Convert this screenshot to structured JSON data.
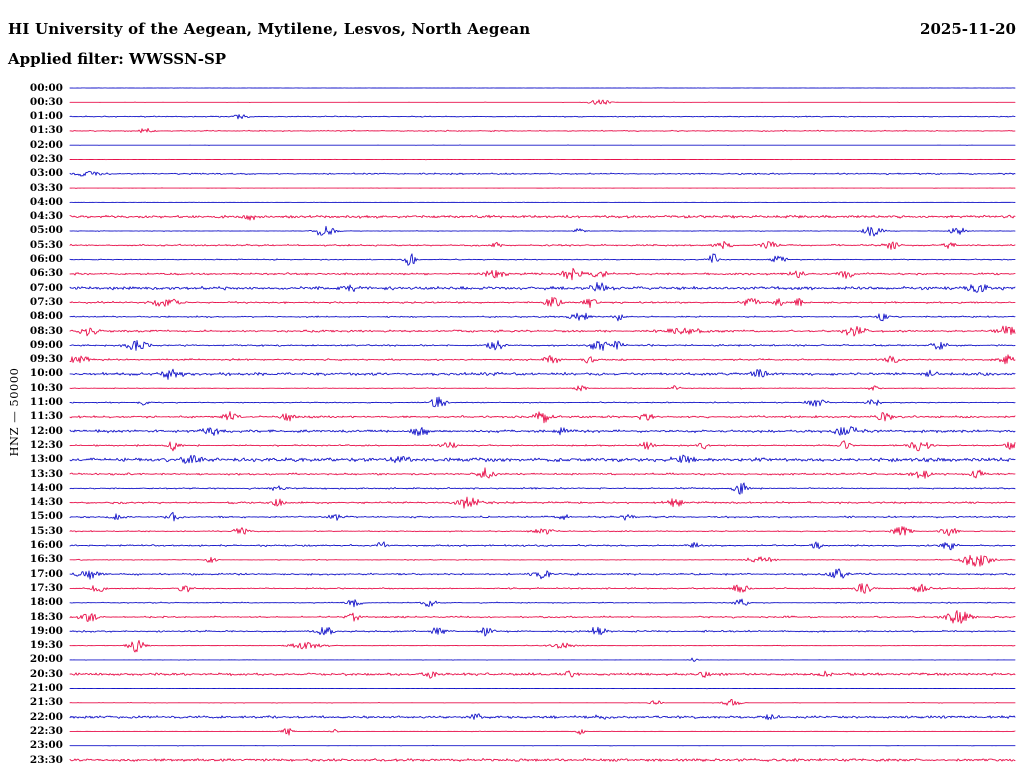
{
  "header": {
    "title": "HI University of the Aegean, Mytilene, Lesvos, North Aegean",
    "date": "2025-11-20",
    "filter": "Applied filter: WWSSN-SP"
  },
  "axis": {
    "channel_label": "HNZ — 50000",
    "first_row_time": "00:00",
    "last_row_time": "23:30",
    "row_interval_minutes": 30
  },
  "colors": {
    "trace_blue": "#1414c8",
    "trace_red": "#e8114b",
    "text": "#000000",
    "background": "#ffffff"
  },
  "chart_data": {
    "type": "line",
    "subtype": "helicorder-seismogram",
    "title": "HI University of the Aegean, Mytilene, Lesvos, North Aegean",
    "date": "2025-11-20",
    "filter": "WWSSN-SP",
    "channel": "HNZ",
    "scale": 50000,
    "rows_per_day": 48,
    "legend_position": "none",
    "grid": false,
    "note": "48 half-hour traces; colors alternate blue (:00) / red (:30); noise=baseline spike amplitude px, density=spike probability per px, bursts=[position-fraction, amplitude, half-width-px]",
    "rows": [
      {
        "time": "00:00",
        "color": "blue",
        "noise": 0.22,
        "density": 0.03,
        "bursts": []
      },
      {
        "time": "00:30",
        "color": "red",
        "noise": 0.22,
        "density": 0.03,
        "bursts": [
          [
            0.56,
            1.4,
            7
          ]
        ]
      },
      {
        "time": "01:00",
        "color": "blue",
        "noise": 0.5,
        "density": 0.38,
        "bursts": [
          [
            0.18,
            1.0,
            6
          ]
        ]
      },
      {
        "time": "01:30",
        "color": "red",
        "noise": 0.52,
        "density": 0.42,
        "bursts": [
          [
            0.08,
            1.3,
            5
          ]
        ]
      },
      {
        "time": "02:00",
        "color": "blue",
        "noise": 0.22,
        "density": 0.03,
        "bursts": []
      },
      {
        "time": "02:30",
        "color": "red",
        "noise": 0.22,
        "density": 0.03,
        "bursts": []
      },
      {
        "time": "03:00",
        "color": "blue",
        "noise": 0.65,
        "density": 0.55,
        "bursts": [
          [
            0.02,
            1.2,
            10
          ]
        ]
      },
      {
        "time": "03:30",
        "color": "red",
        "noise": 0.26,
        "density": 0.07,
        "bursts": []
      },
      {
        "time": "04:00",
        "color": "blue",
        "noise": 0.26,
        "density": 0.05,
        "bursts": []
      },
      {
        "time": "04:30",
        "color": "red",
        "noise": 1.05,
        "density": 0.85,
        "bursts": [
          [
            0.19,
            1.6,
            6
          ]
        ]
      },
      {
        "time": "05:00",
        "color": "blue",
        "noise": 0.38,
        "density": 0.18,
        "bursts": [
          [
            0.27,
            2.4,
            7
          ],
          [
            0.54,
            1.3,
            4
          ],
          [
            0.85,
            2.0,
            7
          ],
          [
            0.94,
            1.6,
            6
          ]
        ]
      },
      {
        "time": "05:30",
        "color": "red",
        "noise": 0.75,
        "density": 0.5,
        "bursts": [
          [
            0.45,
            1.4,
            5
          ],
          [
            0.69,
            1.8,
            6
          ],
          [
            0.74,
            1.6,
            6
          ],
          [
            0.87,
            1.6,
            5
          ],
          [
            0.93,
            1.4,
            4
          ]
        ]
      },
      {
        "time": "06:00",
        "color": "blue",
        "noise": 0.55,
        "density": 0.35,
        "bursts": [
          [
            0.36,
            2.6,
            4
          ],
          [
            0.68,
            2.6,
            4
          ],
          [
            0.75,
            1.9,
            5
          ]
        ]
      },
      {
        "time": "06:30",
        "color": "red",
        "noise": 0.85,
        "density": 0.6,
        "bursts": [
          [
            0.45,
            2.0,
            8
          ],
          [
            0.53,
            2.3,
            8
          ],
          [
            0.56,
            1.8,
            5
          ],
          [
            0.77,
            1.7,
            5
          ],
          [
            0.82,
            2.0,
            6
          ]
        ]
      },
      {
        "time": "07:00",
        "color": "blue",
        "noise": 1.25,
        "density": 0.8,
        "bursts": [
          [
            0.3,
            1.6,
            6
          ],
          [
            0.56,
            2.2,
            8
          ],
          [
            0.96,
            2.2,
            8
          ]
        ]
      },
      {
        "time": "07:30",
        "color": "red",
        "noise": 0.75,
        "density": 0.55,
        "bursts": [
          [
            0.1,
            1.8,
            10
          ],
          [
            0.51,
            2.0,
            6
          ],
          [
            0.55,
            1.8,
            5
          ],
          [
            0.72,
            1.8,
            6
          ],
          [
            0.75,
            1.6,
            4
          ],
          [
            0.77,
            1.6,
            4
          ]
        ]
      },
      {
        "time": "08:00",
        "color": "blue",
        "noise": 0.65,
        "density": 0.45,
        "bursts": [
          [
            0.54,
            2.0,
            7
          ],
          [
            0.58,
            1.6,
            5
          ],
          [
            0.86,
            1.6,
            4
          ]
        ]
      },
      {
        "time": "08:30",
        "color": "red",
        "noise": 0.85,
        "density": 0.6,
        "bursts": [
          [
            0.02,
            2.0,
            6
          ],
          [
            0.65,
            1.3,
            18
          ],
          [
            0.83,
            2.2,
            8
          ],
          [
            0.99,
            2.2,
            8
          ]
        ]
      },
      {
        "time": "09:00",
        "color": "blue",
        "noise": 0.75,
        "density": 0.5,
        "bursts": [
          [
            0.07,
            2.3,
            8
          ],
          [
            0.45,
            2.0,
            6
          ],
          [
            0.56,
            2.3,
            7
          ],
          [
            0.58,
            1.8,
            4
          ],
          [
            0.92,
            1.8,
            5
          ]
        ]
      },
      {
        "time": "09:30",
        "color": "red",
        "noise": 0.75,
        "density": 0.5,
        "bursts": [
          [
            0.01,
            1.8,
            8
          ],
          [
            0.51,
            1.8,
            6
          ],
          [
            0.55,
            1.6,
            5
          ],
          [
            0.87,
            1.6,
            5
          ],
          [
            0.99,
            1.8,
            6
          ]
        ]
      },
      {
        "time": "10:00",
        "color": "blue",
        "noise": 1.15,
        "density": 0.75,
        "bursts": [
          [
            0.11,
            2.8,
            7
          ],
          [
            0.73,
            1.8,
            6
          ],
          [
            0.91,
            1.6,
            5
          ]
        ]
      },
      {
        "time": "10:30",
        "color": "red",
        "noise": 0.45,
        "density": 0.28,
        "bursts": [
          [
            0.54,
            1.3,
            4
          ],
          [
            0.64,
            1.1,
            4
          ],
          [
            0.85,
            1.1,
            4
          ]
        ]
      },
      {
        "time": "11:00",
        "color": "blue",
        "noise": 0.55,
        "density": 0.35,
        "bursts": [
          [
            0.08,
            1.3,
            4
          ],
          [
            0.39,
            2.6,
            5
          ],
          [
            0.79,
            1.8,
            6
          ],
          [
            0.85,
            1.6,
            5
          ]
        ]
      },
      {
        "time": "11:30",
        "color": "red",
        "noise": 0.85,
        "density": 0.6,
        "bursts": [
          [
            0.17,
            1.8,
            6
          ],
          [
            0.23,
            1.6,
            5
          ],
          [
            0.5,
            2.3,
            7
          ],
          [
            0.61,
            1.8,
            6
          ],
          [
            0.86,
            2.0,
            6
          ]
        ]
      },
      {
        "time": "12:00",
        "color": "blue",
        "noise": 1.15,
        "density": 0.7,
        "bursts": [
          [
            0.15,
            1.8,
            6
          ],
          [
            0.37,
            2.0,
            7
          ],
          [
            0.52,
            1.6,
            5
          ],
          [
            0.82,
            2.6,
            8
          ]
        ]
      },
      {
        "time": "12:30",
        "color": "red",
        "noise": 0.65,
        "density": 0.45,
        "bursts": [
          [
            0.11,
            2.0,
            5
          ],
          [
            0.4,
            1.6,
            6
          ],
          [
            0.61,
            1.8,
            5
          ],
          [
            0.67,
            1.6,
            4
          ],
          [
            0.82,
            1.6,
            5
          ],
          [
            0.9,
            2.0,
            8
          ],
          [
            1.0,
            2.6,
            6
          ]
        ]
      },
      {
        "time": "13:00",
        "color": "blue",
        "noise": 1.45,
        "density": 0.85,
        "bursts": [
          [
            0.13,
            2.0,
            8
          ],
          [
            0.35,
            1.8,
            8
          ],
          [
            0.65,
            1.8,
            8
          ]
        ]
      },
      {
        "time": "13:30",
        "color": "red",
        "noise": 0.85,
        "density": 0.6,
        "bursts": [
          [
            0.44,
            2.0,
            6
          ],
          [
            0.9,
            2.0,
            7
          ],
          [
            0.96,
            1.8,
            5
          ]
        ]
      },
      {
        "time": "14:00",
        "color": "blue",
        "noise": 0.65,
        "density": 0.45,
        "bursts": [
          [
            0.22,
            1.4,
            5
          ],
          [
            0.71,
            2.3,
            5
          ]
        ]
      },
      {
        "time": "14:30",
        "color": "red",
        "noise": 0.85,
        "density": 0.55,
        "bursts": [
          [
            0.22,
            1.6,
            5
          ],
          [
            0.42,
            2.6,
            8
          ],
          [
            0.64,
            1.8,
            6
          ]
        ]
      },
      {
        "time": "15:00",
        "color": "blue",
        "noise": 0.75,
        "density": 0.5,
        "bursts": [
          [
            0.05,
            1.6,
            5
          ],
          [
            0.11,
            1.6,
            5
          ],
          [
            0.28,
            1.6,
            5
          ],
          [
            0.52,
            1.4,
            5
          ],
          [
            0.59,
            1.4,
            5
          ]
        ]
      },
      {
        "time": "15:30",
        "color": "red",
        "noise": 0.55,
        "density": 0.35,
        "bursts": [
          [
            0.18,
            1.8,
            5
          ],
          [
            0.5,
            1.4,
            8
          ],
          [
            0.88,
            2.0,
            7
          ],
          [
            0.93,
            1.8,
            6
          ]
        ]
      },
      {
        "time": "16:00",
        "color": "blue",
        "noise": 0.75,
        "density": 0.5,
        "bursts": [
          [
            0.33,
            1.6,
            4
          ],
          [
            0.66,
            1.6,
            5
          ],
          [
            0.79,
            1.4,
            4
          ],
          [
            0.93,
            1.6,
            6
          ]
        ]
      },
      {
        "time": "16:30",
        "color": "red",
        "noise": 0.45,
        "density": 0.25,
        "bursts": [
          [
            0.15,
            1.4,
            4
          ],
          [
            0.73,
            1.4,
            10
          ],
          [
            0.96,
            3.0,
            10
          ]
        ]
      },
      {
        "time": "17:00",
        "color": "blue",
        "noise": 0.85,
        "density": 0.55,
        "bursts": [
          [
            0.02,
            2.0,
            8
          ],
          [
            0.5,
            1.8,
            6
          ],
          [
            0.81,
            2.8,
            7
          ]
        ]
      },
      {
        "time": "17:30",
        "color": "red",
        "noise": 0.65,
        "density": 0.45,
        "bursts": [
          [
            0.03,
            1.6,
            5
          ],
          [
            0.12,
            1.6,
            5
          ],
          [
            0.71,
            1.8,
            6
          ],
          [
            0.84,
            2.0,
            7
          ],
          [
            0.9,
            1.8,
            6
          ]
        ]
      },
      {
        "time": "18:00",
        "color": "blue",
        "noise": 0.55,
        "density": 0.35,
        "bursts": [
          [
            0.3,
            1.6,
            6
          ],
          [
            0.38,
            1.6,
            5
          ],
          [
            0.71,
            1.8,
            5
          ]
        ]
      },
      {
        "time": "18:30",
        "color": "red",
        "noise": 0.75,
        "density": 0.5,
        "bursts": [
          [
            0.02,
            2.0,
            6
          ],
          [
            0.3,
            1.6,
            5
          ],
          [
            0.94,
            2.8,
            9
          ]
        ]
      },
      {
        "time": "19:00",
        "color": "blue",
        "noise": 0.75,
        "density": 0.5,
        "bursts": [
          [
            0.27,
            2.0,
            6
          ],
          [
            0.39,
            2.0,
            5
          ],
          [
            0.44,
            1.8,
            5
          ],
          [
            0.56,
            2.3,
            6
          ]
        ]
      },
      {
        "time": "19:30",
        "color": "red",
        "noise": 0.38,
        "density": 0.18,
        "bursts": [
          [
            0.07,
            2.6,
            6
          ],
          [
            0.25,
            1.3,
            12
          ],
          [
            0.52,
            1.1,
            10
          ]
        ]
      },
      {
        "time": "20:00",
        "color": "blue",
        "noise": 0.26,
        "density": 0.06,
        "bursts": [
          [
            0.66,
            1.1,
            3
          ]
        ]
      },
      {
        "time": "20:30",
        "color": "red",
        "noise": 1.0,
        "density": 0.8,
        "bursts": [
          [
            0.38,
            1.4,
            5
          ],
          [
            0.53,
            1.4,
            5
          ],
          [
            0.67,
            1.4,
            5
          ],
          [
            0.8,
            1.2,
            5
          ]
        ]
      },
      {
        "time": "21:00",
        "color": "blue",
        "noise": 0.26,
        "density": 0.05,
        "bursts": []
      },
      {
        "time": "21:30",
        "color": "red",
        "noise": 0.3,
        "density": 0.12,
        "bursts": [
          [
            0.62,
            1.1,
            4
          ],
          [
            0.7,
            1.6,
            6
          ]
        ]
      },
      {
        "time": "22:00",
        "color": "blue",
        "noise": 1.0,
        "density": 0.8,
        "bursts": [
          [
            0.43,
            1.2,
            5
          ],
          [
            0.56,
            1.2,
            5
          ],
          [
            0.74,
            1.2,
            5
          ]
        ]
      },
      {
        "time": "22:30",
        "color": "red",
        "noise": 0.3,
        "density": 0.12,
        "bursts": [
          [
            0.23,
            1.4,
            4
          ],
          [
            0.28,
            1.1,
            3
          ],
          [
            0.54,
            1.2,
            3
          ]
        ]
      },
      {
        "time": "23:00",
        "color": "blue",
        "noise": 0.26,
        "density": 0.06,
        "bursts": []
      },
      {
        "time": "23:30",
        "color": "red",
        "noise": 1.05,
        "density": 0.88,
        "bursts": []
      }
    ]
  }
}
